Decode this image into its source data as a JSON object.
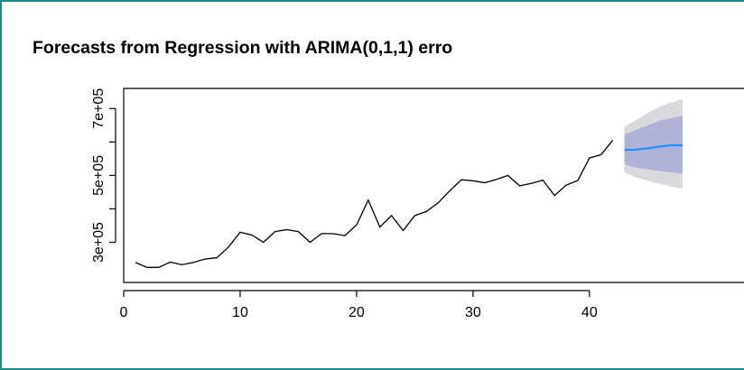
{
  "chart_data": {
    "type": "line",
    "title": "Forecasts from Regression with ARIMA(0,1,1) erro",
    "xlabel": "",
    "ylabel": "",
    "xlim": [
      0,
      48
    ],
    "ylim": [
      180000,
      760000
    ],
    "x_ticks": [
      0,
      10,
      20,
      30,
      40
    ],
    "x_tick_labels": [
      "0",
      "10",
      "20",
      "30",
      "40"
    ],
    "y_ticks": [
      300000,
      500000,
      700000
    ],
    "y_tick_labels": [
      "3e+05",
      "5e+05",
      "7e+05"
    ],
    "grid": false,
    "series": [
      {
        "x": [
          1,
          2,
          3,
          4,
          5,
          6,
          7,
          8,
          9,
          10,
          11,
          12,
          13,
          14,
          15,
          16,
          17,
          18,
          19,
          20,
          21,
          22,
          23,
          24,
          25,
          26,
          27,
          28,
          29,
          30,
          31,
          32,
          33,
          34,
          35,
          36,
          37,
          38,
          39,
          40,
          41,
          42
        ],
        "values": [
          240000,
          225000,
          225000,
          241000,
          233000,
          240000,
          250000,
          254000,
          286000,
          330000,
          322000,
          300000,
          332000,
          338000,
          332000,
          300000,
          326000,
          326000,
          320000,
          352000,
          426000,
          346000,
          380000,
          335000,
          380000,
          392000,
          418000,
          454000,
          487000,
          484000,
          478000,
          488000,
          500000,
          469000,
          476000,
          486000,
          440000,
          471000,
          485000,
          552000,
          562000,
          605000
        ],
        "color": "#000000"
      }
    ],
    "forecast": {
      "x": [
        43,
        44,
        45,
        46,
        47,
        48
      ],
      "mean": [
        576000,
        577000,
        581000,
        586000,
        590000,
        590000
      ],
      "lo80": [
        533000,
        523000,
        519000,
        513000,
        509000,
        505000
      ],
      "hi80": [
        622000,
        636000,
        649000,
        664000,
        671000,
        678000
      ],
      "lo95": [
        509000,
        494000,
        484000,
        475000,
        467000,
        460000
      ],
      "hi95": [
        646000,
        666000,
        686000,
        705000,
        718000,
        728000
      ],
      "mean_color": "#1e90ff",
      "band80_color": "#b0b3d8",
      "band95_color": "#d9d9de"
    }
  }
}
